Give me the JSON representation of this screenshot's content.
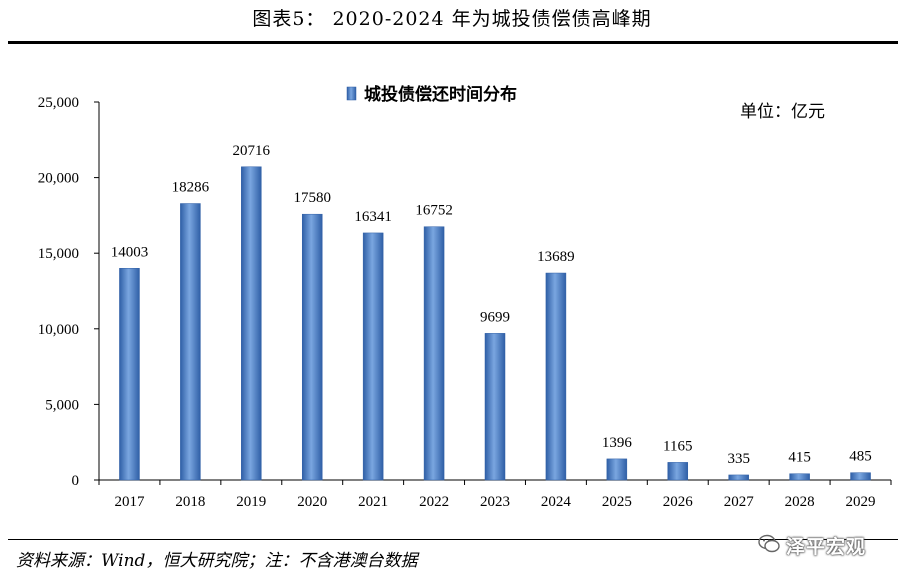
{
  "figure": {
    "title": "图表5： 2020-2024 年为城投债偿债高峰期",
    "source": "资料来源：Wind，恒大研究院；注：不含港澳台数据",
    "watermark": "泽平宏观"
  },
  "chart_data": {
    "type": "bar",
    "legend": "城投债偿还时间分布",
    "unit": "单位：亿元",
    "categories": [
      "2017",
      "2018",
      "2019",
      "2020",
      "2021",
      "2022",
      "2023",
      "2024",
      "2025",
      "2026",
      "2027",
      "2028",
      "2029"
    ],
    "series": [
      {
        "name": "城投债偿还时间分布",
        "values": [
          14003,
          18286,
          20716,
          17580,
          16341,
          16752,
          9699,
          13689,
          1396,
          1165,
          335,
          415,
          485
        ],
        "labels": [
          "14003",
          "18286",
          "20716",
          "17580",
          "16341",
          "16752",
          "9699",
          "13689",
          "1396",
          "1165",
          "335",
          "415",
          "485"
        ],
        "color": "#4a7fc9"
      }
    ],
    "ylim": [
      0,
      25000
    ],
    "yticks": [
      0,
      5000,
      10000,
      15000,
      20000,
      25000
    ],
    "ytick_labels": [
      "0",
      "5,000",
      "10,000",
      "15,000",
      "20,000",
      "25,000"
    ],
    "grid": false,
    "legend_position": "top-center"
  }
}
